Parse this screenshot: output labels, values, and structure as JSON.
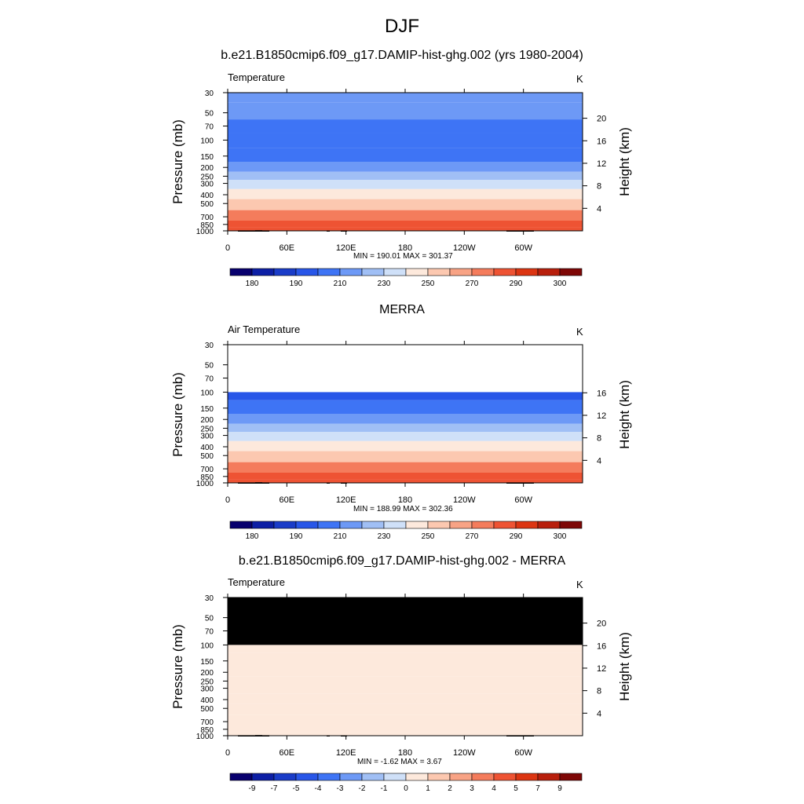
{
  "figure": {
    "title": "DJF"
  },
  "panels": [
    {
      "title": "b.e21.B1850cmip6.f09_g17.DAMIP-hist-ghg.002 (yrs 1980-2004)",
      "left_label": "Temperature",
      "right_label": "K",
      "stats": "MIN = 190.01  MAX = 301.37",
      "ylabel": "Pressure (mb)",
      "y2label": "Height (km)"
    },
    {
      "title": "MERRA",
      "left_label": "Air Temperature",
      "right_label": "K",
      "stats": "MIN = 188.99  MAX = 302.36",
      "ylabel": "Pressure (mb)",
      "y2label": "Height (km)"
    },
    {
      "title": "b.e21.B1850cmip6.f09_g17.DAMIP-hist-ghg.002 - MERRA",
      "left_label": "Temperature",
      "right_label": "K",
      "stats": "MIN =  -1.62  MAX =   3.67",
      "ylabel": "Pressure (mb)",
      "y2label": "Height (km)"
    }
  ],
  "chart_data": [
    {
      "type": "heatmap",
      "subtitle": "Temperature",
      "units": "K",
      "x_ticks": [
        "0",
        "60E",
        "120E",
        "180",
        "120W",
        "60W"
      ],
      "y_ticks": [
        "30",
        "50",
        "70",
        "100",
        "150",
        "200",
        "250",
        "300",
        "400",
        "500",
        "700",
        "850",
        "1000"
      ],
      "y2_ticks": [
        "20",
        "16",
        "12",
        "8",
        "4"
      ],
      "pressure_levels_mb": [
        30,
        50,
        70,
        100,
        150,
        200,
        250,
        300,
        400,
        500,
        700,
        850,
        1000
      ],
      "zonal_mean_temperature_K": [
        216,
        212,
        203,
        200,
        207,
        218,
        228,
        236,
        249,
        259,
        274,
        282,
        288
      ],
      "min": 190.01,
      "max": 301.37,
      "colorbar_labels": [
        "180",
        "190",
        "210",
        "230",
        "250",
        "270",
        "290",
        "300"
      ],
      "colorbar_levels": [
        175,
        180,
        185,
        190,
        200,
        210,
        220,
        230,
        240,
        250,
        260,
        270,
        280,
        290,
        295,
        300
      ],
      "colors": [
        "#08006e",
        "#0d1fa5",
        "#1a3cc8",
        "#2856e8",
        "#3e74f5",
        "#6d99f6",
        "#a0bff5",
        "#cfe0f8",
        "#fde9dc",
        "#fcc8b0",
        "#f8a385",
        "#f47c5c",
        "#ee5333",
        "#dc3512",
        "#b81f0c",
        "#7e0706"
      ]
    },
    {
      "type": "heatmap",
      "subtitle": "Air Temperature",
      "units": "K",
      "x_ticks": [
        "0",
        "60E",
        "120E",
        "180",
        "120W",
        "60W"
      ],
      "y_ticks": [
        "30",
        "50",
        "70",
        "100",
        "150",
        "200",
        "250",
        "300",
        "400",
        "500",
        "700",
        "850",
        "1000"
      ],
      "y2_ticks": [
        "16",
        "12",
        "8",
        "4"
      ],
      "pressure_levels_mb": [
        100,
        150,
        200,
        250,
        300,
        400,
        500,
        700,
        850,
        1000
      ],
      "zonal_mean_temperature_K": [
        198,
        205,
        216,
        226,
        234,
        247,
        257,
        272,
        281,
        287
      ],
      "no_data_above_mb": 100,
      "min": 188.99,
      "max": 302.36,
      "colorbar_labels": [
        "180",
        "190",
        "210",
        "230",
        "250",
        "270",
        "290",
        "300"
      ]
    },
    {
      "type": "heatmap",
      "subtitle": "Temperature",
      "units": "K",
      "x_ticks": [
        "0",
        "60E",
        "120E",
        "180",
        "120W",
        "60W"
      ],
      "y_ticks": [
        "30",
        "50",
        "70",
        "100",
        "150",
        "200",
        "250",
        "300",
        "400",
        "500",
        "700",
        "850",
        "1000"
      ],
      "y2_ticks": [
        "20",
        "16",
        "12",
        "8",
        "4"
      ],
      "pressure_levels_mb": [
        100,
        150,
        200,
        250,
        300,
        400,
        500,
        700,
        850,
        1000
      ],
      "zonal_mean_difference_K": [
        0.8,
        0.6,
        0.5,
        0.5,
        0.4,
        0.5,
        0.5,
        0.6,
        0.5,
        0.3
      ],
      "no_data_above_mb": 100,
      "min": -1.62,
      "max": 3.67,
      "colorbar_labels": [
        "-9",
        "-7",
        "-5",
        "-4",
        "-3",
        "-2",
        "-1",
        "0",
        "1",
        "2",
        "3",
        "4",
        "5",
        "7",
        "9"
      ],
      "colors": [
        "#08006e",
        "#0d1fa5",
        "#1a3cc8",
        "#2856e8",
        "#3e74f5",
        "#6d99f6",
        "#a0bff5",
        "#cfe0f8",
        "#fde9dc",
        "#fcc8b0",
        "#f8a385",
        "#f47c5c",
        "#ee5333",
        "#dc3512",
        "#b81f0c",
        "#7e0706"
      ]
    }
  ]
}
